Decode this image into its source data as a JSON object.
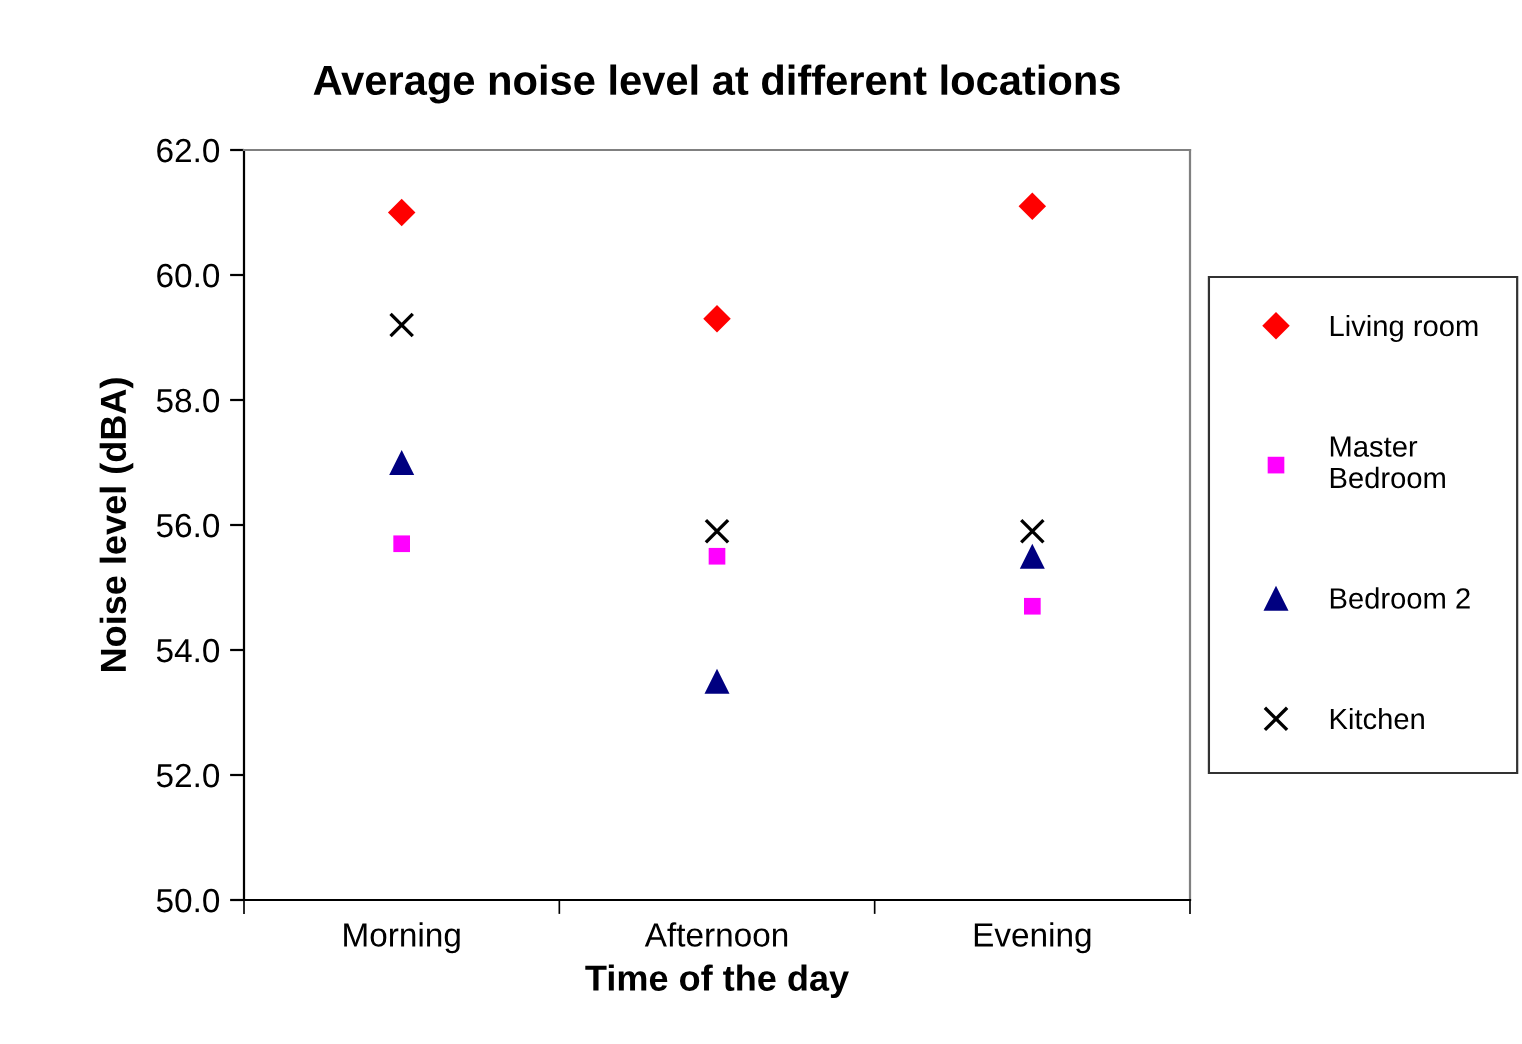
{
  "chart_data": {
    "type": "scatter",
    "title": "Average noise level at different locations",
    "xlabel": "Time of the day",
    "ylabel": "Noise level (dBA)",
    "categories": [
      "Morning",
      "Afternoon",
      "Evening"
    ],
    "series": [
      {
        "name": "Living room",
        "color": "#ff0000",
        "marker": "diamond",
        "values": [
          61.0,
          59.3,
          61.1
        ]
      },
      {
        "name": "Master\nBedroom",
        "color": "#ff00ff",
        "marker": "square",
        "values": [
          55.7,
          55.5,
          54.7
        ]
      },
      {
        "name": "Bedroom 2",
        "color": "#000080",
        "marker": "triangle",
        "values": [
          57.0,
          53.5,
          55.5
        ]
      },
      {
        "name": "Kitchen",
        "color": "#000000",
        "marker": "cross",
        "values": [
          59.2,
          55.9,
          55.9
        ]
      }
    ],
    "ylim": [
      50,
      62
    ],
    "yticks": [
      {
        "value": 50,
        "label": "50.0"
      },
      {
        "value": 52,
        "label": "52.0"
      },
      {
        "value": 54,
        "label": "54.0"
      },
      {
        "value": 56,
        "label": "56.0"
      },
      {
        "value": 58,
        "label": "58.0"
      },
      {
        "value": 60,
        "label": "60.0"
      },
      {
        "value": 62,
        "label": "62.0"
      }
    ],
    "grid": false,
    "legend": "right"
  }
}
